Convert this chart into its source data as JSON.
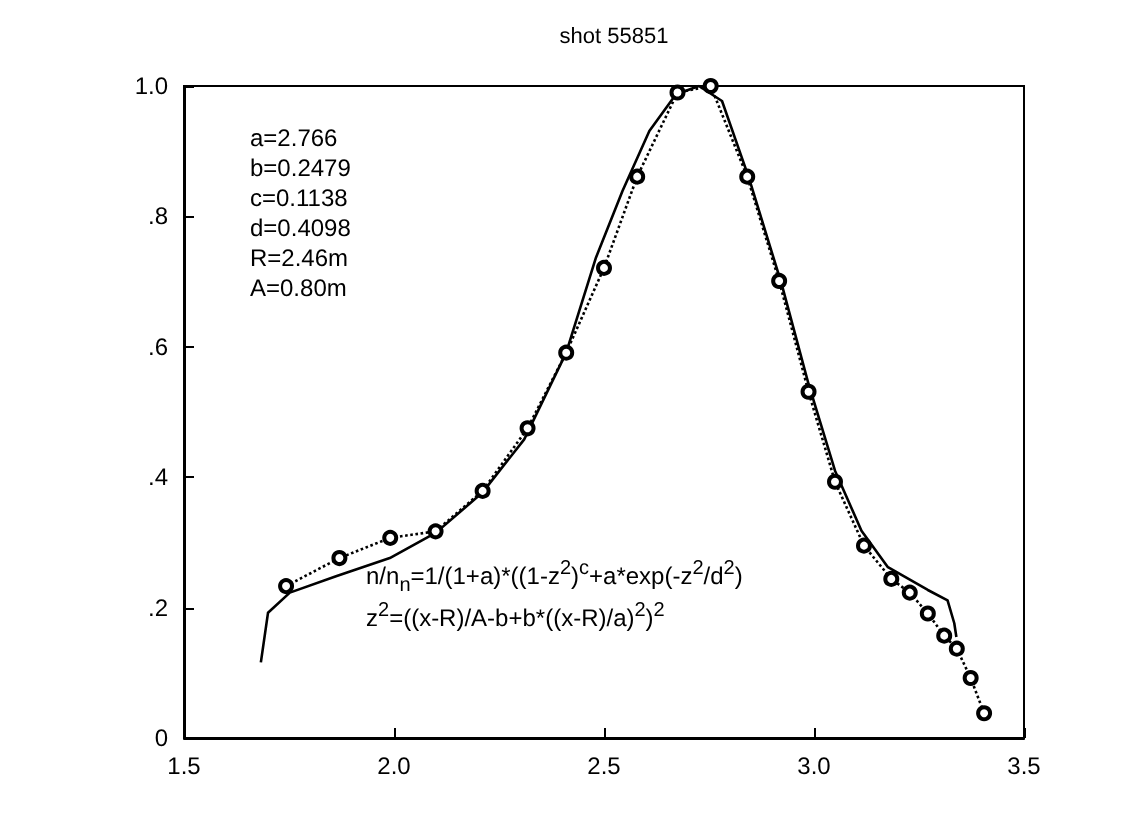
{
  "chart_data": {
    "type": "line",
    "title": "shot 55851",
    "annotations": [
      "a=2.766\nb=0.2479\nc=0.1138\nd=0.4098\nR=2.46m\nA=0.80m",
      "n/n$_{n}$=1/(1+a)*((1-z$^{2}$)$^{c}$+a*exp(-z$^{2}$/d$^{2}$)\nz$^{2}$=((x-R)/A-b+b*((x-R)/a)$^{2}$)$^{2}$"
    ],
    "series": [
      {
        "color": "#000000",
        "marker": "circle",
        "line_style": "dotted",
        "x": [
          1.743,
          1.87,
          1.991,
          2.099,
          2.211,
          2.318,
          2.41,
          2.5,
          2.579,
          2.675,
          2.754,
          2.841,
          2.917,
          2.987,
          3.05,
          3.119,
          3.184,
          3.228,
          3.271,
          3.31,
          3.34,
          3.373,
          3.405
        ],
        "values": [
          0.233,
          0.276,
          0.307,
          0.317,
          0.379,
          0.475,
          0.591,
          0.721,
          0.861,
          0.99,
          1.0,
          0.861,
          0.701,
          0.531,
          0.393,
          0.295,
          0.244,
          0.223,
          0.191,
          0.157,
          0.137,
          0.092,
          0.038
        ]
      },
      {
        "color": "#000000",
        "marker": "none",
        "line_style": "solid",
        "x": [
          1.683,
          1.7,
          1.752,
          1.862,
          1.99,
          2.1,
          2.21,
          2.31,
          2.41,
          2.481,
          2.544,
          2.608,
          2.671,
          2.726,
          2.781,
          2.845,
          2.923,
          2.987,
          3.05,
          3.113,
          3.176,
          3.271,
          3.318,
          3.334,
          3.339
        ],
        "values": [
          0.116,
          0.192,
          0.223,
          0.248,
          0.276,
          0.315,
          0.376,
          0.458,
          0.591,
          0.737,
          0.839,
          0.931,
          0.987,
          1.0,
          0.977,
          0.859,
          0.696,
          0.543,
          0.41,
          0.318,
          0.262,
          0.227,
          0.211,
          0.176,
          0.155
        ]
      }
    ],
    "xlim": [
      1.5,
      3.5
    ],
    "xticks": [
      1.5,
      {
        "value": 2,
        "label": "2.0"
      },
      2.5,
      {
        "value": 3,
        "label": "3.0"
      },
      3.5
    ],
    "ylim": [
      0,
      1
    ],
    "yticks": [
      0,
      {
        "value": 0.2,
        "label": ".2"
      },
      {
        "value": 0.4,
        "label": ".4"
      },
      {
        "value": 0.6,
        "label": ".6"
      },
      {
        "value": 0.8,
        "label": ".8"
      },
      {
        "value": 1,
        "label": "1.0"
      }
    ],
    "grid": false
  }
}
